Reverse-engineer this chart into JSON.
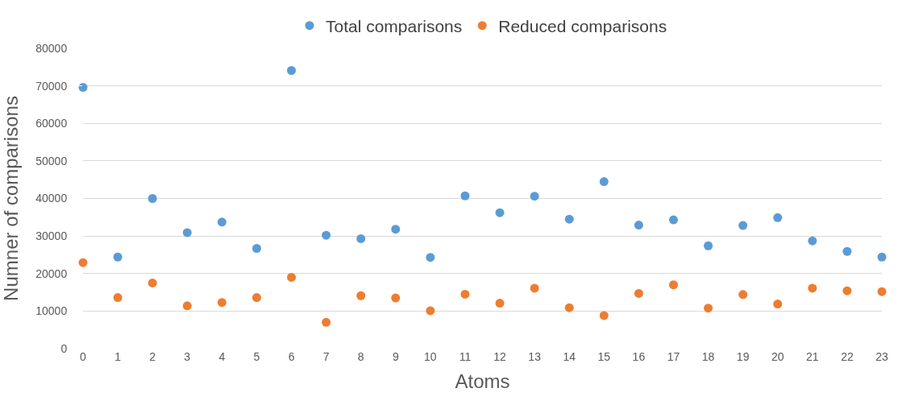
{
  "chart_data": {
    "type": "scatter",
    "xlabel": "Atoms",
    "ylabel": "Numner of comparisons",
    "x": [
      0,
      1,
      2,
      3,
      4,
      5,
      6,
      7,
      8,
      9,
      10,
      11,
      12,
      13,
      14,
      15,
      16,
      17,
      18,
      19,
      20,
      21,
      22,
      23
    ],
    "series": [
      {
        "name": "Total comparisons",
        "color": "#5b9bd5",
        "values": [
          69600,
          24400,
          40000,
          30900,
          33700,
          26700,
          74100,
          30200,
          29300,
          31800,
          24300,
          40700,
          36200,
          40600,
          34500,
          44500,
          32900,
          34300,
          27400,
          32800,
          34900,
          28700,
          25900,
          24400
        ]
      },
      {
        "name": "Reduced comparisons",
        "color": "#ed7d31",
        "values": [
          22900,
          13600,
          17500,
          11400,
          12300,
          13600,
          19000,
          7000,
          14100,
          13500,
          10100,
          14500,
          12100,
          16100,
          10900,
          8800,
          14700,
          17000,
          10800,
          14400,
          11900,
          16100,
          15400,
          15200
        ]
      }
    ],
    "xlim": [
      0,
      23
    ],
    "xticks": [
      0,
      1,
      2,
      3,
      4,
      5,
      6,
      7,
      8,
      9,
      10,
      11,
      12,
      13,
      14,
      15,
      16,
      17,
      18,
      19,
      20,
      21,
      22,
      23
    ],
    "ylim": [
      0,
      80000
    ],
    "yticks": [
      0,
      10000,
      20000,
      30000,
      40000,
      50000,
      60000,
      70000,
      80000
    ],
    "grid": "y",
    "legend": "top",
    "marker": "circle"
  }
}
